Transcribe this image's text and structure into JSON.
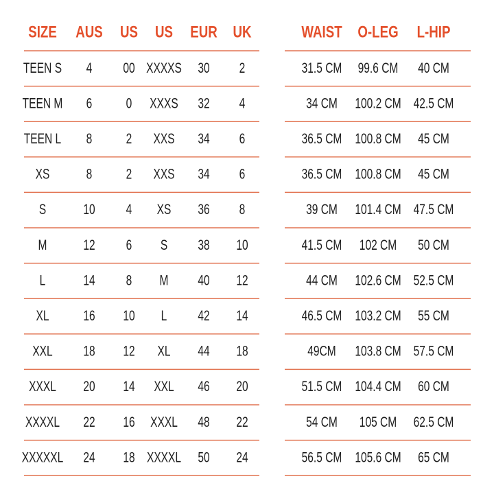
{
  "size_table": {
    "headers": [
      "SIZE",
      "AUS",
      "US",
      "US",
      "EUR",
      "UK"
    ],
    "rows": [
      [
        "TEEN S",
        "4",
        "00",
        "XXXXS",
        "30",
        "2"
      ],
      [
        "TEEN M",
        "6",
        "0",
        "XXXS",
        "32",
        "4"
      ],
      [
        "TEEN L",
        "8",
        "2",
        "XXS",
        "34",
        "6"
      ],
      [
        "XS",
        "8",
        "2",
        "XXS",
        "34",
        "6"
      ],
      [
        "S",
        "10",
        "4",
        "XS",
        "36",
        "8"
      ],
      [
        "M",
        "12",
        "6",
        "S",
        "38",
        "10"
      ],
      [
        "L",
        "14",
        "8",
        "M",
        "40",
        "12"
      ],
      [
        "XL",
        "16",
        "10",
        "L",
        "42",
        "14"
      ],
      [
        "XXL",
        "18",
        "12",
        "XL",
        "44",
        "18"
      ],
      [
        "XXXL",
        "20",
        "14",
        "XXL",
        "46",
        "20"
      ],
      [
        "XXXXL",
        "22",
        "16",
        "XXXL",
        "48",
        "22"
      ],
      [
        "XXXXXL",
        "24",
        "18",
        "XXXXL",
        "50",
        "24"
      ]
    ]
  },
  "measure_table": {
    "headers": [
      "WAIST",
      "O-LEG",
      "L-HIP"
    ],
    "rows": [
      [
        "31.5 CM",
        "99.6 CM",
        "40 CM"
      ],
      [
        "34 CM",
        "100.2 CM",
        "42.5 CM"
      ],
      [
        "36.5 CM",
        "100.8 CM",
        "45 CM"
      ],
      [
        "36.5 CM",
        "100.8 CM",
        "45 CM"
      ],
      [
        "39 CM",
        "101.4 CM",
        "47.5 CM"
      ],
      [
        "41.5 CM",
        "102 CM",
        "50 CM"
      ],
      [
        "44 CM",
        "102.6 CM",
        "52.5 CM"
      ],
      [
        "46.5 CM",
        "103.2 CM",
        "55 CM"
      ],
      [
        "49CM",
        "103.8 CM",
        "57.5 CM"
      ],
      [
        "51.5 CM",
        "104.4 CM",
        "60 CM"
      ],
      [
        "54 CM",
        "105 CM",
        "62.5 CM"
      ],
      [
        "56.5 CM",
        "105.6 CM",
        "65 CM"
      ]
    ]
  }
}
